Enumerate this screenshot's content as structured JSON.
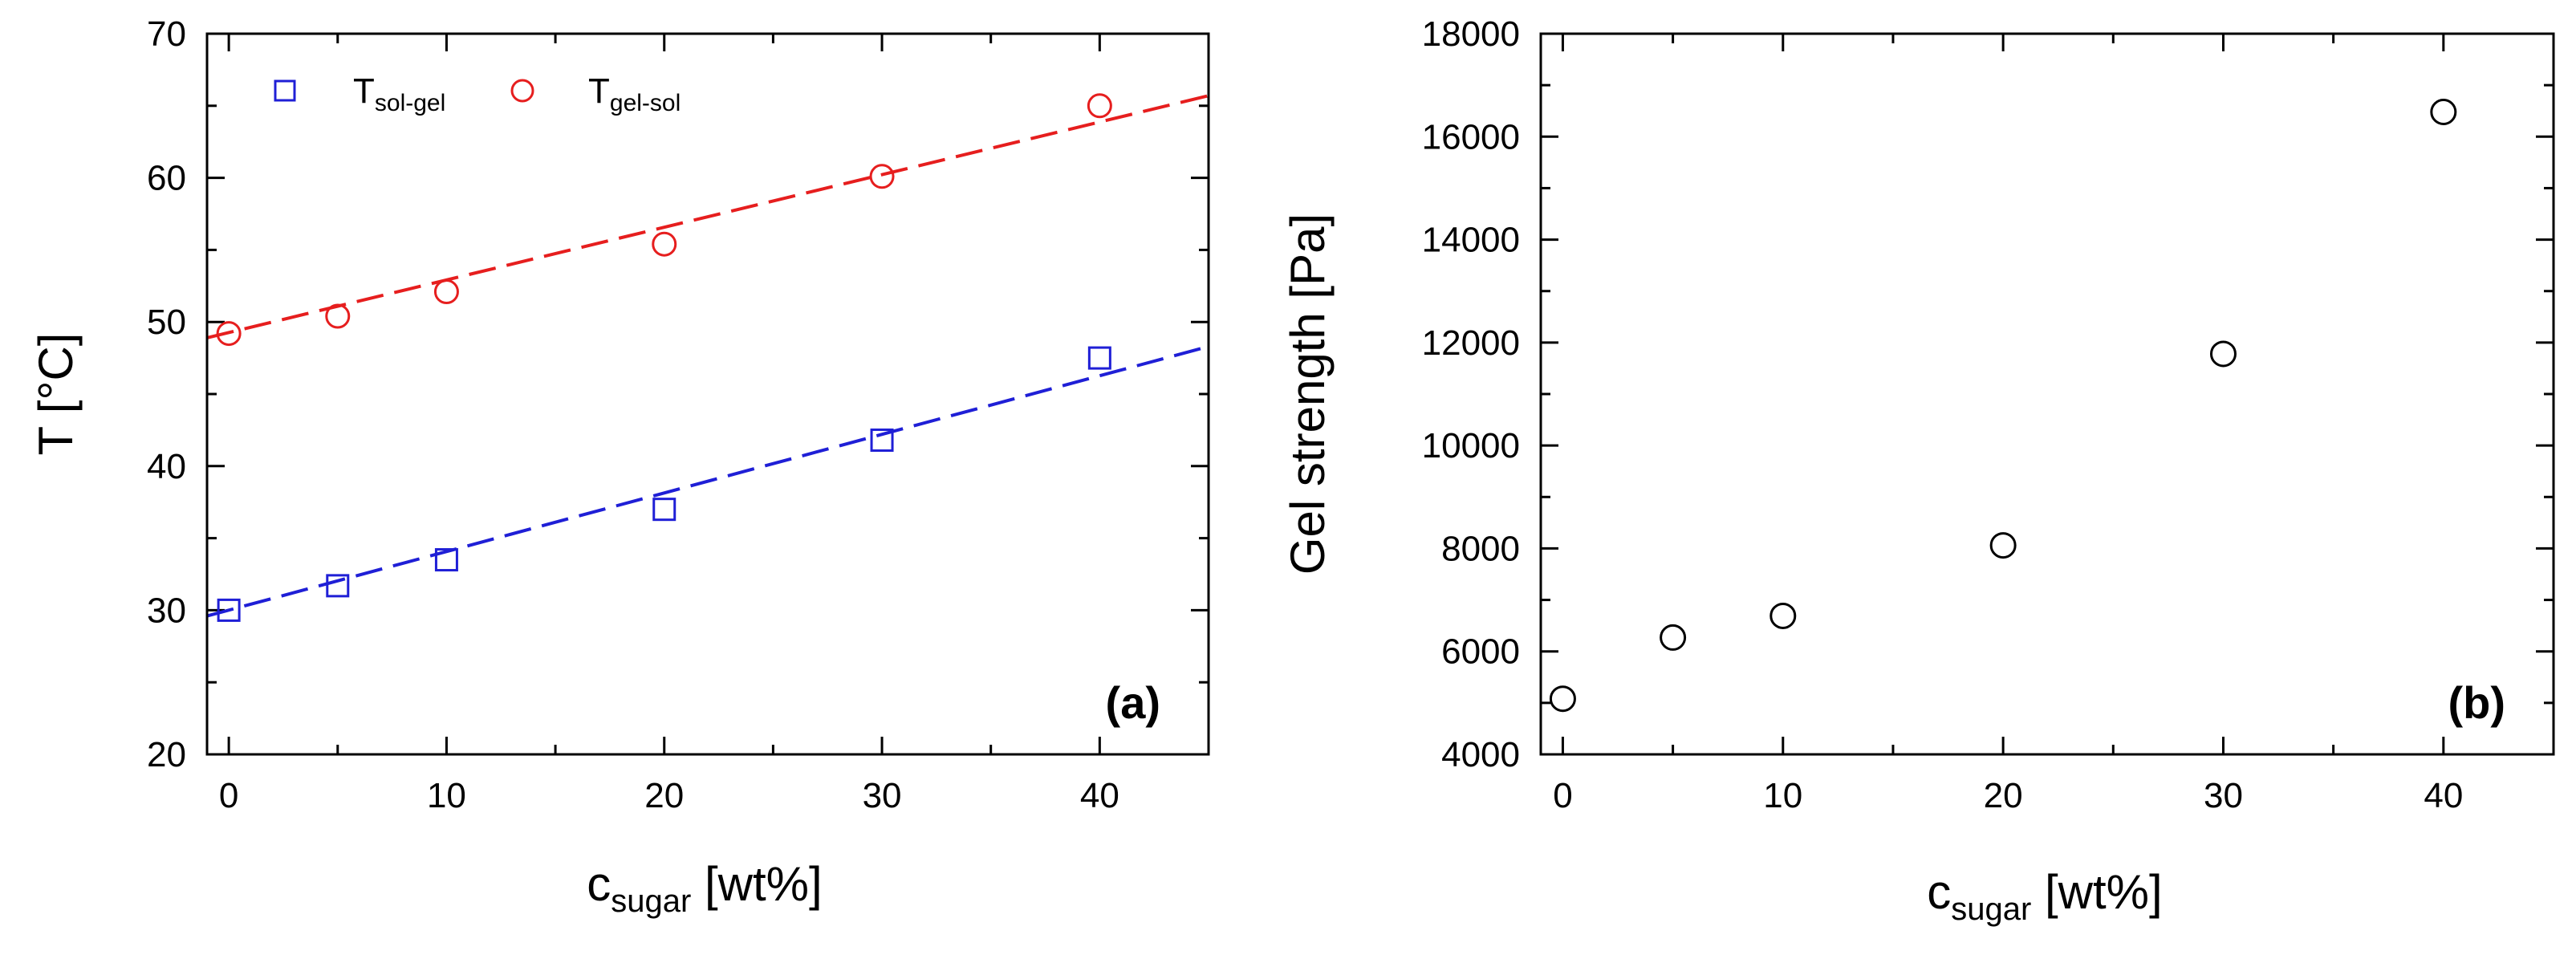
{
  "chart_data": [
    {
      "panel": "(a)",
      "type": "scatter",
      "xlabel": {
        "main": "c",
        "sub": "sugar",
        "unit": " [wt%]"
      },
      "ylabel": "T [°C]",
      "xlim": [
        -1,
        45
      ],
      "ylim": [
        20,
        70
      ],
      "xticks": [
        0,
        10,
        20,
        30,
        40
      ],
      "yticks": [
        20,
        30,
        40,
        50,
        60,
        70
      ],
      "series": [
        {
          "name": "T_sol-gel",
          "legend_main": "T",
          "legend_sub": "sol-gel",
          "marker": "square",
          "color": "#1f1fd6",
          "x": [
            0,
            5,
            10,
            20,
            30,
            40
          ],
          "y": [
            30.0,
            31.7,
            33.5,
            37.0,
            41.8,
            47.5
          ],
          "fit": {
            "x": [
              -1,
              45
            ],
            "y": [
              29.6,
              48.3
            ]
          }
        },
        {
          "name": "T_gel-sol",
          "legend_main": "T",
          "legend_sub": "gel-sol",
          "marker": "circle",
          "color": "#e61e1e",
          "x": [
            0,
            5,
            10,
            20,
            30,
            40
          ],
          "y": [
            49.2,
            50.4,
            52.1,
            55.4,
            60.1,
            65.0
          ],
          "fit": {
            "x": [
              -1,
              45
            ],
            "y": [
              48.9,
              65.7
            ]
          }
        }
      ]
    },
    {
      "panel": "(b)",
      "type": "scatter",
      "xlabel": {
        "main": "c",
        "sub": "sugar",
        "unit": " [wt%]"
      },
      "ylabel": "Gel strength [Pa]",
      "xlim": [
        -1,
        45
      ],
      "ylim": [
        4000,
        18000
      ],
      "xticks": [
        0,
        10,
        20,
        30,
        40
      ],
      "yticks": [
        4000,
        6000,
        8000,
        10000,
        12000,
        14000,
        16000,
        18000
      ],
      "series": [
        {
          "name": "Gel strength",
          "marker": "circle",
          "color": "#000000",
          "x": [
            0,
            5,
            10,
            20,
            30,
            40
          ],
          "y": [
            5080,
            6270,
            6690,
            8060,
            11780,
            16480
          ]
        }
      ]
    }
  ]
}
